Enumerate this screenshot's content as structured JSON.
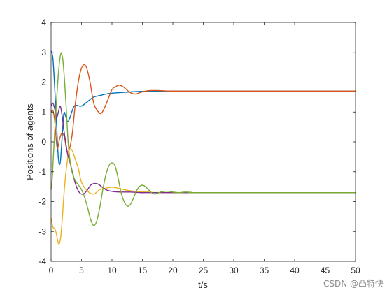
{
  "chart_data": {
    "type": "line",
    "title": "",
    "xlabel": "t/s",
    "ylabel": "Positions of agents",
    "xlim": [
      0,
      50
    ],
    "ylim": [
      -4,
      4
    ],
    "xticks": [
      0,
      5,
      10,
      15,
      20,
      25,
      30,
      35,
      40,
      45,
      50
    ],
    "yticks": [
      -4,
      -3,
      -2,
      -1,
      0,
      1,
      2,
      3,
      4
    ],
    "grid": false,
    "legend": "none",
    "series": [
      {
        "color": "#0072BD",
        "x": [
          0,
          0.3,
          0.6,
          0.9,
          1.2,
          1.5,
          1.8,
          2.1,
          2.4,
          2.7,
          3.0,
          3.4,
          3.8,
          4.3,
          5.0,
          6.0,
          7.0,
          8.0,
          9.0,
          10.0,
          12.0,
          15.0,
          20.0,
          30.0,
          50.0
        ],
        "y": [
          3.05,
          2.8,
          1.8,
          0.6,
          -0.55,
          -0.7,
          0.1,
          0.95,
          0.85,
          0.68,
          0.75,
          1.0,
          1.2,
          1.22,
          1.2,
          1.35,
          1.5,
          1.55,
          1.6,
          1.63,
          1.66,
          1.69,
          1.7,
          1.7,
          1.7
        ]
      },
      {
        "color": "#D95319",
        "x": [
          0,
          0.3,
          0.6,
          1.0,
          1.4,
          1.8,
          2.2,
          2.6,
          3.0,
          3.5,
          4.0,
          4.6,
          5.2,
          5.8,
          6.4,
          7.0,
          7.6,
          8.2,
          8.8,
          9.4,
          10.0,
          10.6,
          11.2,
          11.8,
          12.4,
          13.0,
          13.8,
          14.6,
          15.5,
          16.5,
          17.5,
          18.5,
          20.0,
          23.0,
          50.0
        ],
        "y": [
          1.0,
          1.05,
          0.7,
          -0.2,
          0.1,
          0.3,
          0.15,
          -0.3,
          -0.25,
          0.3,
          1.3,
          2.15,
          2.55,
          2.5,
          2.0,
          1.3,
          1.05,
          0.95,
          1.15,
          1.45,
          1.75,
          1.85,
          1.9,
          1.85,
          1.75,
          1.65,
          1.6,
          1.65,
          1.7,
          1.72,
          1.72,
          1.71,
          1.7,
          1.7,
          1.7
        ]
      },
      {
        "color": "#EDB120",
        "x": [
          0,
          0.3,
          0.6,
          0.9,
          1.2,
          1.5,
          1.8,
          2.1,
          2.4,
          2.7,
          3.0,
          3.5,
          4.0,
          4.5,
          5.0,
          6.0,
          7.0,
          8.0,
          9.0,
          10.0,
          11.0,
          12.0,
          14.0,
          16.0,
          20.0,
          50.0
        ],
        "y": [
          -2.55,
          -2.85,
          -2.9,
          -3.1,
          -3.4,
          -3.3,
          -2.7,
          -1.8,
          -1.1,
          -0.6,
          -0.25,
          -0.3,
          -0.6,
          -0.9,
          -1.35,
          -1.65,
          -1.75,
          -1.6,
          -1.55,
          -1.52,
          -1.55,
          -1.6,
          -1.66,
          -1.68,
          -1.7,
          -1.7
        ]
      },
      {
        "color": "#7E2F8E",
        "x": [
          0,
          0.3,
          0.6,
          0.9,
          1.2,
          1.5,
          1.8,
          2.1,
          2.4,
          2.7,
          3.0,
          3.5,
          4.0,
          4.5,
          5.0,
          5.5,
          6.0,
          6.5,
          7.0,
          7.5,
          8.0,
          8.6,
          9.2,
          9.8,
          10.5,
          11.5,
          13.0,
          15.0,
          18.0,
          50.0
        ],
        "y": [
          1.2,
          1.3,
          1.1,
          0.8,
          1.0,
          1.2,
          0.9,
          0.4,
          0.0,
          -0.4,
          -0.6,
          -1.0,
          -1.4,
          -1.65,
          -1.75,
          -1.72,
          -1.6,
          -1.45,
          -1.4,
          -1.4,
          -1.45,
          -1.55,
          -1.62,
          -1.65,
          -1.67,
          -1.68,
          -1.68,
          -1.7,
          -1.7,
          -1.7
        ]
      },
      {
        "color": "#77AC30",
        "x": [
          0,
          0.2,
          0.4,
          0.7,
          1.0,
          1.3,
          1.6,
          1.9,
          2.2,
          2.5,
          2.8,
          3.1,
          3.5,
          4.0,
          4.5,
          5.0,
          5.5,
          6.0,
          6.5,
          7.0,
          7.5,
          8.0,
          8.5,
          9.0,
          9.5,
          10.0,
          10.5,
          11.0,
          11.5,
          12.0,
          12.5,
          13.0,
          13.5,
          14.0,
          14.5,
          15.0,
          15.5,
          16.0,
          16.5,
          17.0,
          17.5,
          18.0,
          19.0,
          20.0,
          21.0,
          22.0,
          23.0,
          25.0,
          50.0
        ],
        "y": [
          -1.6,
          -1.2,
          -0.4,
          0.7,
          1.7,
          2.5,
          2.95,
          2.8,
          2.1,
          1.1,
          0.0,
          -0.6,
          -1.05,
          -1.3,
          -1.45,
          -1.6,
          -1.85,
          -2.2,
          -2.6,
          -2.8,
          -2.65,
          -2.2,
          -1.6,
          -1.1,
          -0.8,
          -0.7,
          -0.8,
          -1.2,
          -1.7,
          -2.0,
          -2.15,
          -2.1,
          -1.9,
          -1.65,
          -1.5,
          -1.45,
          -1.5,
          -1.6,
          -1.7,
          -1.75,
          -1.72,
          -1.68,
          -1.65,
          -1.68,
          -1.7,
          -1.68,
          -1.69,
          -1.7,
          -1.7
        ]
      }
    ]
  },
  "watermark": "CSDN @凸特快"
}
